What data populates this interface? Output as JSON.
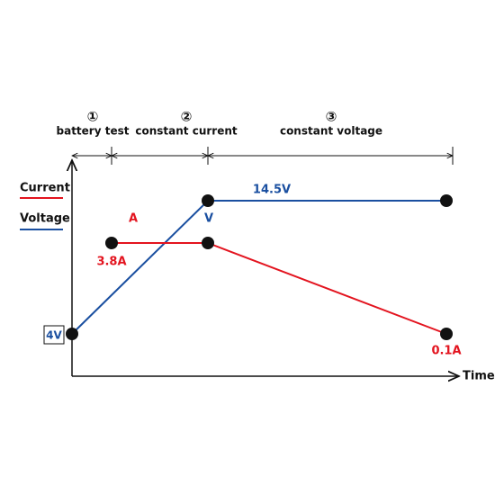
{
  "stages": [
    {
      "number": "①",
      "label": "battery test"
    },
    {
      "number": "②",
      "label": "constant current"
    },
    {
      "number": "③",
      "label": "constant voltage"
    }
  ],
  "legend": {
    "current": "Current",
    "voltage": "Voltage"
  },
  "labels": {
    "current_marker": "A",
    "voltage_marker": "V",
    "start_current": "3.8A",
    "max_voltage": "14.5V",
    "start_voltage": "4V",
    "end_current": "0.1A",
    "x_axis": "Time"
  }
}
